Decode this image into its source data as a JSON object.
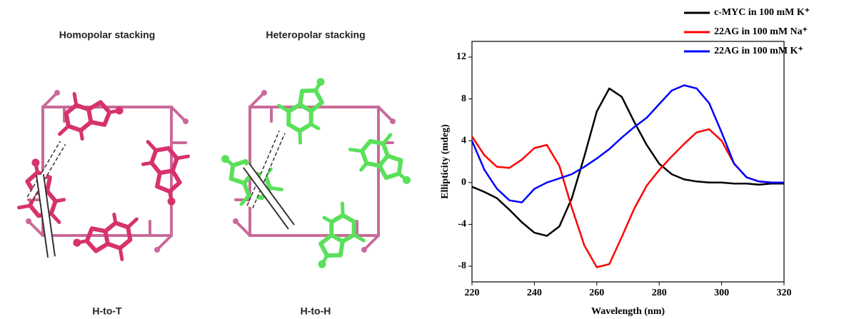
{
  "figure": {
    "panels": [
      {
        "title": "Homopolar stacking",
        "label": "H-to-T"
      },
      {
        "title": "Heteropolar stacking",
        "label": "H-to-H"
      }
    ]
  },
  "chart_data": {
    "type": "line",
    "x_label": "Wavelength (nm)",
    "y_label": "Ellipticity (mdeg)",
    "x": [
      220,
      224,
      228,
      232,
      236,
      240,
      244,
      248,
      252,
      256,
      260,
      264,
      268,
      272,
      276,
      280,
      284,
      288,
      292,
      296,
      300,
      304,
      308,
      312,
      316,
      320
    ],
    "series": [
      {
        "name": "c-MYC in 100 mM K⁺",
        "color": "#000000",
        "values": [
          -0.4,
          -0.9,
          -1.5,
          -2.6,
          -3.8,
          -4.8,
          -5.1,
          -4.2,
          -1.5,
          2.5,
          6.8,
          9.0,
          8.2,
          5.8,
          3.6,
          1.8,
          0.8,
          0.3,
          0.1,
          0.0,
          0.0,
          -0.1,
          -0.1,
          -0.2,
          -0.1,
          -0.1
        ]
      },
      {
        "name": "22AG in 100 mM Na⁺",
        "color": "#ff0000",
        "values": [
          4.4,
          2.6,
          1.5,
          1.4,
          2.2,
          3.3,
          3.6,
          1.6,
          -2.4,
          -6.0,
          -8.1,
          -7.8,
          -5.2,
          -2.5,
          -0.3,
          1.2,
          2.5,
          3.7,
          4.8,
          5.1,
          4.0,
          1.8,
          0.5,
          0.1,
          0.0,
          0.0
        ]
      },
      {
        "name": "22AG in 100 mM K⁺",
        "color": "#0000ff",
        "values": [
          4.0,
          1.2,
          -0.6,
          -1.7,
          -1.9,
          -0.6,
          0.0,
          0.4,
          0.8,
          1.5,
          2.3,
          3.2,
          4.3,
          5.3,
          6.2,
          7.5,
          8.8,
          9.3,
          9.0,
          7.6,
          4.8,
          1.8,
          0.5,
          0.1,
          0.0,
          0.0
        ]
      }
    ],
    "xlim": [
      220,
      320
    ],
    "xticks": [
      220,
      240,
      260,
      280,
      300,
      320
    ],
    "ylim": [
      -9.5,
      13.5
    ],
    "yticks": [
      -8,
      -4,
      0,
      4,
      8,
      12
    ],
    "legend": "upper right",
    "grid": false
  }
}
